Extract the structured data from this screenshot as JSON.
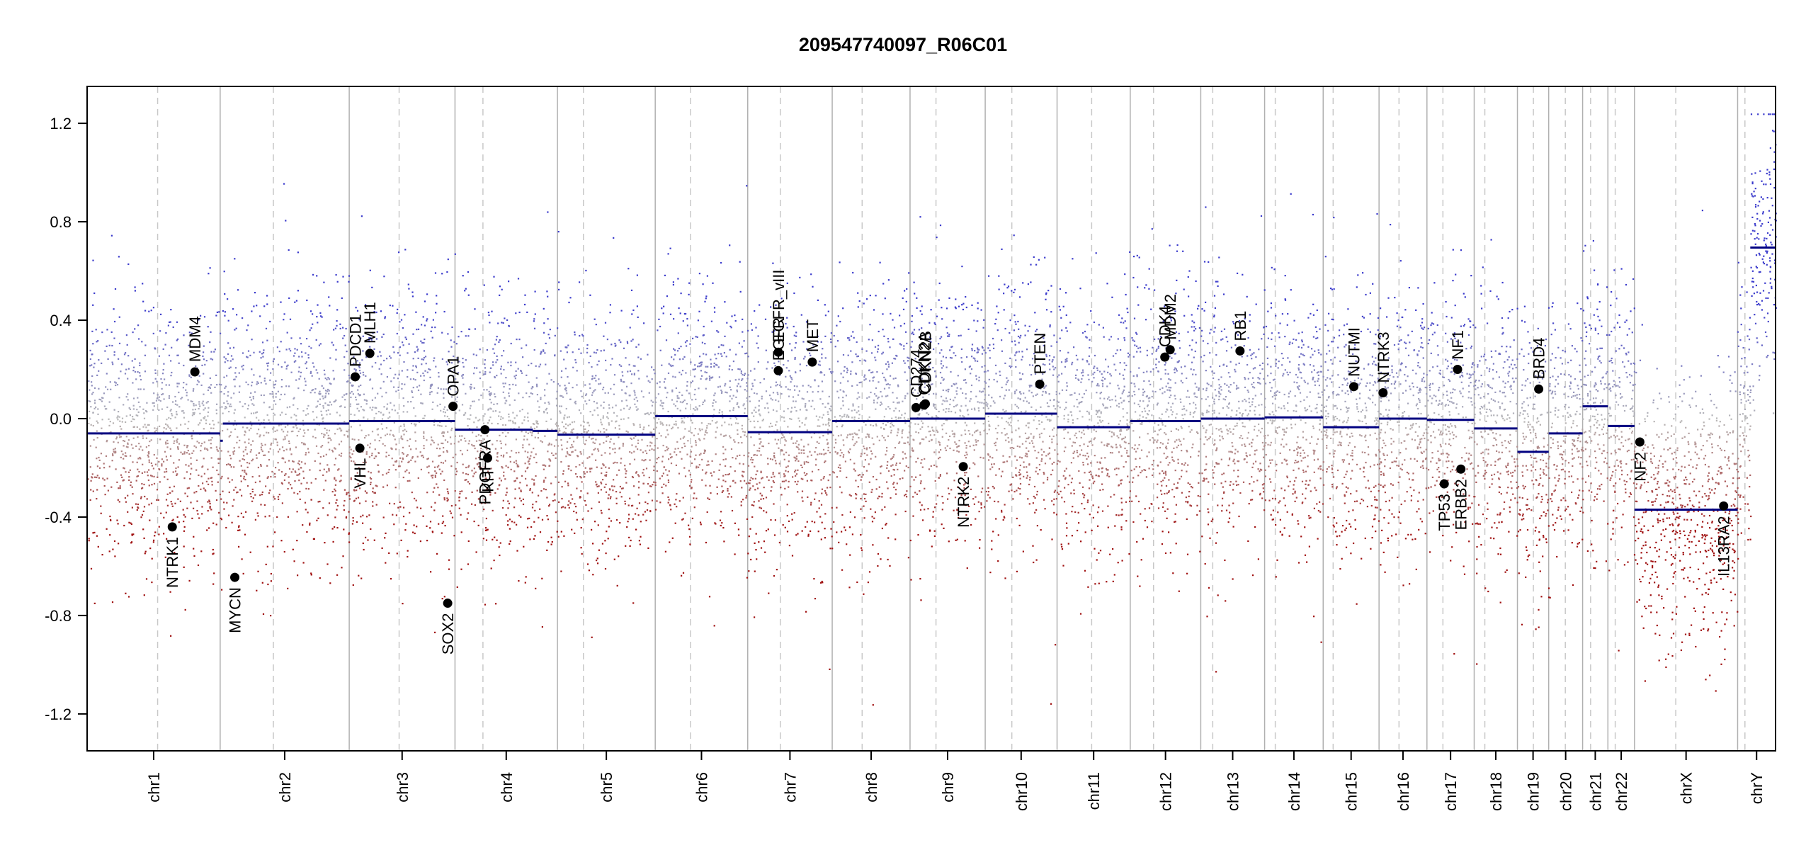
{
  "chart_data": {
    "type": "scatter",
    "title": "209547740097_R06C01",
    "xlabel": "",
    "ylabel": "",
    "ylim": [
      -1.35,
      1.35
    ],
    "yticks": [
      "1.2",
      "0.8",
      "0.4",
      "0.0",
      "-0.4",
      "-0.8",
      "-1.2"
    ],
    "ytick_values": [
      1.2,
      0.8,
      0.4,
      0.0,
      -0.4,
      -0.8,
      -1.2
    ],
    "grid": false,
    "colors": {
      "gain": "#3b3bcc",
      "loss": "#a01010",
      "neutral": "#b8b8b8",
      "segment": "#000080",
      "boundary": "#b0b0b0",
      "centromere": "#c8c8c8",
      "gene_point": "#000000"
    },
    "chromosomes": [
      {
        "name": "chr1",
        "start": 0,
        "end": 2.0,
        "centro": 1.06
      },
      {
        "name": "chr2",
        "start": 2.0,
        "end": 3.94,
        "centro": 2.8
      },
      {
        "name": "chr3",
        "start": 3.94,
        "end": 5.53,
        "centro": 4.69
      },
      {
        "name": "chr4",
        "start": 5.53,
        "end": 7.07,
        "centro": 5.95
      },
      {
        "name": "chr5",
        "start": 7.07,
        "end": 8.54,
        "centro": 7.46
      },
      {
        "name": "chr6",
        "start": 8.54,
        "end": 9.93,
        "centro": 9.07
      },
      {
        "name": "chr7",
        "start": 9.93,
        "end": 11.2,
        "centro": 10.42
      },
      {
        "name": "chr8",
        "start": 11.2,
        "end": 12.37,
        "centro": 11.65
      },
      {
        "name": "chr9",
        "start": 12.37,
        "end": 13.5,
        "centro": 12.76
      },
      {
        "name": "chr10",
        "start": 13.5,
        "end": 14.58,
        "centro": 13.9
      },
      {
        "name": "chr11",
        "start": 14.58,
        "end": 15.68,
        "centro": 15.1
      },
      {
        "name": "chr12",
        "start": 15.68,
        "end": 16.74,
        "centro": 16.03
      },
      {
        "name": "chr13",
        "start": 16.74,
        "end": 17.7,
        "centro": 16.92
      },
      {
        "name": "chr14",
        "start": 17.7,
        "end": 18.58,
        "centro": 17.86
      },
      {
        "name": "chr15",
        "start": 18.58,
        "end": 19.42,
        "centro": 18.73
      },
      {
        "name": "chr16",
        "start": 19.42,
        "end": 20.14,
        "centro": 19.72
      },
      {
        "name": "chr17",
        "start": 20.14,
        "end": 20.85,
        "centro": 20.38
      },
      {
        "name": "chr18",
        "start": 20.85,
        "end": 21.5,
        "centro": 21.01
      },
      {
        "name": "chr19",
        "start": 21.5,
        "end": 21.97,
        "centro": 21.74
      },
      {
        "name": "chr20",
        "start": 21.97,
        "end": 22.48,
        "centro": 22.22
      },
      {
        "name": "chr21",
        "start": 22.48,
        "end": 22.86,
        "centro": 22.6
      },
      {
        "name": "chr22",
        "start": 22.86,
        "end": 23.26,
        "centro": 22.97
      },
      {
        "name": "chrX",
        "start": 23.26,
        "end": 24.81,
        "centro": 23.88
      },
      {
        "name": "chrY",
        "start": 24.81,
        "end": 25.38,
        "centro": 24.92
      }
    ],
    "segments": [
      {
        "x0": 0,
        "x1": 2.0,
        "y": -0.06
      },
      {
        "x0": 2.0,
        "x1": 2.04,
        "y": -0.09
      },
      {
        "x0": 2.04,
        "x1": 3.94,
        "y": -0.02
      },
      {
        "x0": 3.94,
        "x1": 5.53,
        "y": -0.01
      },
      {
        "x0": 5.53,
        "x1": 6.7,
        "y": -0.045
      },
      {
        "x0": 6.7,
        "x1": 7.07,
        "y": -0.05
      },
      {
        "x0": 7.07,
        "x1": 8.54,
        "y": -0.065
      },
      {
        "x0": 8.54,
        "x1": 9.93,
        "y": 0.01
      },
      {
        "x0": 9.93,
        "x1": 11.2,
        "y": -0.055
      },
      {
        "x0": 11.2,
        "x1": 12.37,
        "y": -0.01
      },
      {
        "x0": 12.37,
        "x1": 13.5,
        "y": 0.0
      },
      {
        "x0": 13.5,
        "x1": 14.58,
        "y": 0.02
      },
      {
        "x0": 14.58,
        "x1": 15.68,
        "y": -0.035
      },
      {
        "x0": 15.68,
        "x1": 16.74,
        "y": -0.01
      },
      {
        "x0": 16.74,
        "x1": 17.7,
        "y": 0.0
      },
      {
        "x0": 17.7,
        "x1": 18.58,
        "y": 0.005
      },
      {
        "x0": 18.58,
        "x1": 19.42,
        "y": -0.035
      },
      {
        "x0": 19.42,
        "x1": 20.14,
        "y": 0.0
      },
      {
        "x0": 20.14,
        "x1": 20.85,
        "y": -0.005
      },
      {
        "x0": 20.85,
        "x1": 21.5,
        "y": -0.04
      },
      {
        "x0": 21.5,
        "x1": 21.97,
        "y": -0.135
      },
      {
        "x0": 21.97,
        "x1": 22.48,
        "y": -0.06
      },
      {
        "x0": 22.48,
        "x1": 22.86,
        "y": 0.05
      },
      {
        "x0": 22.86,
        "x1": 23.26,
        "y": -0.03
      },
      {
        "x0": 23.26,
        "x1": 24.81,
        "y": -0.37
      },
      {
        "x0": 25.0,
        "x1": 25.38,
        "y": 0.695
      }
    ],
    "genes": [
      {
        "name": "MDM4",
        "x": 1.62,
        "y": 0.19,
        "side": "above"
      },
      {
        "name": "NTRK1",
        "x": 1.28,
        "y": -0.44,
        "side": "below"
      },
      {
        "name": "MYCN",
        "x": 2.22,
        "y": -0.645,
        "side": "below"
      },
      {
        "name": "PDCD1",
        "x": 4.03,
        "y": 0.17,
        "side": "above"
      },
      {
        "name": "MLH1",
        "x": 4.25,
        "y": 0.265,
        "side": "above"
      },
      {
        "name": "VHL",
        "x": 4.1,
        "y": -0.12,
        "side": "below"
      },
      {
        "name": "OPA1",
        "x": 5.5,
        "y": 0.05,
        "side": "above"
      },
      {
        "name": "SOX2",
        "x": 5.42,
        "y": -0.75,
        "side": "below"
      },
      {
        "name": "PDGFRA",
        "x": 5.98,
        "y": -0.045,
        "side": "below"
      },
      {
        "name": "KIT",
        "x": 6.02,
        "y": -0.16,
        "side": "below"
      },
      {
        "name": "EGFR",
        "x": 10.39,
        "y": 0.195,
        "side": "above"
      },
      {
        "name": "EGFR_vIII",
        "x": 10.39,
        "y": 0.27,
        "side": "above"
      },
      {
        "name": "MET",
        "x": 10.9,
        "y": 0.23,
        "side": "above"
      },
      {
        "name": "CD274",
        "x": 12.46,
        "y": 0.045,
        "side": "above"
      },
      {
        "name": "CDKN2A",
        "x": 12.58,
        "y": 0.055,
        "side": "above"
      },
      {
        "name": "CDKN2B",
        "x": 12.6,
        "y": 0.06,
        "side": "above"
      },
      {
        "name": "NTRK2",
        "x": 13.17,
        "y": -0.195,
        "side": "below"
      },
      {
        "name": "PTEN",
        "x": 14.32,
        "y": 0.14,
        "side": "above"
      },
      {
        "name": "CDK4",
        "x": 16.2,
        "y": 0.25,
        "side": "above"
      },
      {
        "name": "MDM2",
        "x": 16.28,
        "y": 0.28,
        "side": "above"
      },
      {
        "name": "RB1",
        "x": 17.33,
        "y": 0.275,
        "side": "above"
      },
      {
        "name": "NUTMI",
        "x": 19.04,
        "y": 0.13,
        "side": "above"
      },
      {
        "name": "NTRK3",
        "x": 19.48,
        "y": 0.105,
        "side": "above"
      },
      {
        "name": "NF1",
        "x": 20.6,
        "y": 0.2,
        "side": "above"
      },
      {
        "name": "TP53",
        "x": 20.4,
        "y": -0.265,
        "side": "below"
      },
      {
        "name": "ERBB2",
        "x": 20.65,
        "y": -0.205,
        "side": "below"
      },
      {
        "name": "BRD4",
        "x": 21.82,
        "y": 0.12,
        "side": "above"
      },
      {
        "name": "NF2",
        "x": 23.34,
        "y": -0.095,
        "side": "below"
      },
      {
        "name": "IL13RA2",
        "x": 24.6,
        "y": -0.355,
        "side": "below"
      }
    ]
  }
}
